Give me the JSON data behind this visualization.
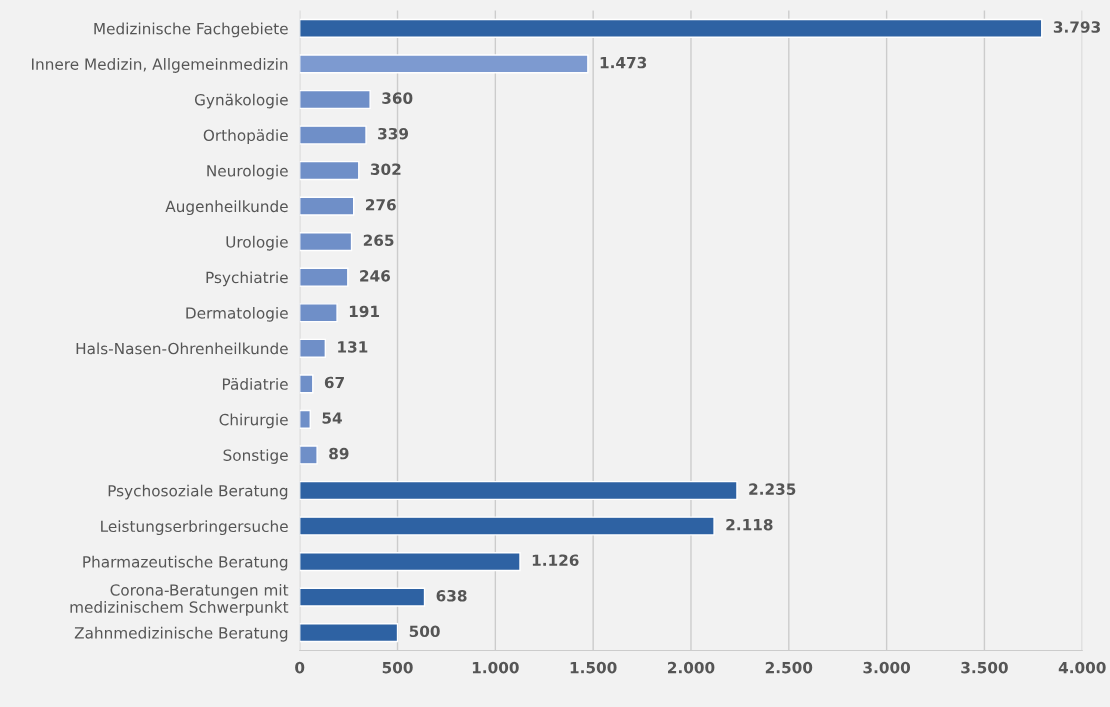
{
  "chart_data": {
    "type": "bar",
    "orientation": "horizontal",
    "categories": [
      "Medizinische Fachgebiete",
      "Innere Medizin, Allgemeinmedizin",
      "Gynäkologie",
      "Orthopädie",
      "Neurologie",
      "Augenheilkunde",
      "Urologie",
      "Psychiatrie",
      "Dermatologie",
      "Hals-Nasen-Ohrenheilkunde",
      "Pädiatrie",
      "Chirurgie",
      "Sonstige",
      "Psychosoziale Beratung",
      "Leistungserbringersuche",
      "Pharmazeutische Beratung",
      "Corona-Beratungen mit\nmedizinischem Schwerpunkt",
      "Zahnmedizinische Beratung"
    ],
    "values": [
      3793,
      1473,
      360,
      339,
      302,
      276,
      265,
      246,
      191,
      131,
      67,
      54,
      89,
      2235,
      2118,
      1126,
      638,
      500
    ],
    "value_labels": [
      "3.793",
      "1.473",
      "360",
      "339",
      "302",
      "276",
      "265",
      "246",
      "191",
      "131",
      "67",
      "54",
      "89",
      "2.235",
      "2.118",
      "1.126",
      "638",
      "500"
    ],
    "colors": [
      "#2e62a3",
      "#7d9ad0",
      "#6f8fc8",
      "#6f8fc8",
      "#6f8fc8",
      "#6f8fc8",
      "#6f8fc8",
      "#6f8fc8",
      "#6f8fc8",
      "#6f8fc8",
      "#6f8fc8",
      "#6f8fc8",
      "#6f8fc8",
      "#2e62a3",
      "#2e62a3",
      "#2e62a3",
      "#2e62a3",
      "#2e62a3"
    ],
    "xlim": [
      0,
      4000
    ],
    "xticks": [
      0,
      500,
      {
        "value": 1000,
        "label": "1.000"
      },
      {
        "value": 1500,
        "label": "1.500"
      },
      {
        "value": 2000,
        "label": "2.000"
      },
      {
        "value": 2500,
        "label": "2.500"
      },
      {
        "value": 3000,
        "label": "3.000"
      },
      {
        "value": 3500,
        "label": "3.500"
      },
      {
        "value": 4000,
        "label": "4.000"
      }
    ],
    "grid": "x",
    "legend": false
  }
}
